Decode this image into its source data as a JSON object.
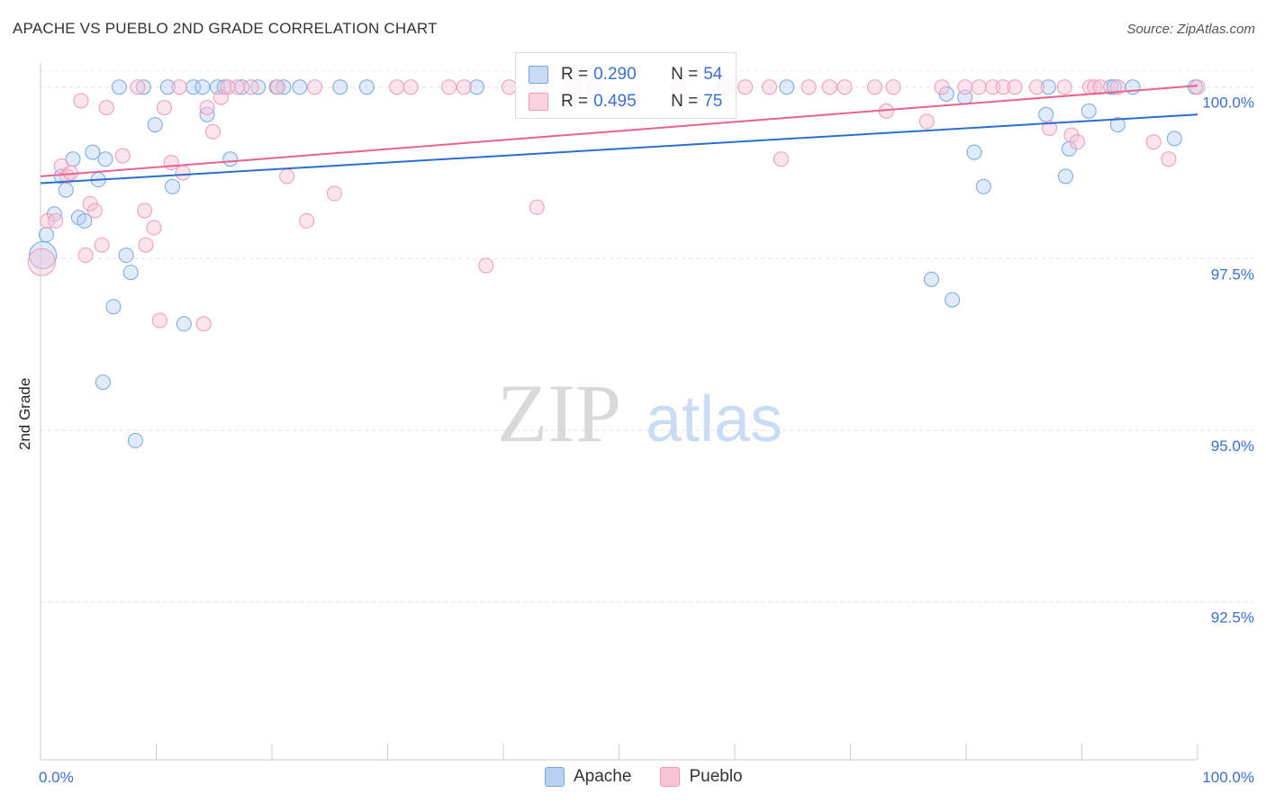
{
  "header": {
    "title": "APACHE VS PUEBLO 2ND GRADE CORRELATION CHART",
    "source": "Source: ZipAtlas.com"
  },
  "watermark": {
    "zip": "ZIP",
    "atlas": "atlas"
  },
  "stats": [
    {
      "r_label": "R = ",
      "r": "0.290",
      "n_label": "N = ",
      "n": "54",
      "color": "#a9c6ef"
    },
    {
      "r_label": "R = ",
      "r": "0.495",
      "n_label": "N = ",
      "n": "75",
      "color": "#f5b4c8"
    }
  ],
  "legend": [
    {
      "label": "Apache",
      "color": "#b8d1f3"
    },
    {
      "label": "Pueblo",
      "color": "#f9c4d4"
    }
  ],
  "chart_data": {
    "type": "scatter",
    "title": "APACHE VS PUEBLO 2ND GRADE CORRELATION CHART",
    "xlabel": "",
    "ylabel": "2nd Grade",
    "xlim": [
      0,
      100
    ],
    "ylim": [
      90.2,
      100.35
    ],
    "x_tick_labels": [
      "0.0%",
      "100.0%"
    ],
    "y_ticks": [
      92.5,
      95.0,
      97.5,
      100.0
    ],
    "y_tick_labels": [
      "92.5%",
      "95.0%",
      "97.5%",
      "100.0%"
    ],
    "grid": true,
    "legend_position": "bottom-center",
    "series": [
      {
        "name": "Apache",
        "color": "#7aa6e3",
        "line_color": "#2a6fcf",
        "trend": {
          "x": [
            0,
            100
          ],
          "y": [
            98.6,
            99.6
          ]
        },
        "points": [
          [
            0.2,
            97.55
          ],
          [
            0.5,
            97.85
          ],
          [
            1.2,
            98.15
          ],
          [
            1.8,
            98.7
          ],
          [
            2.2,
            98.5
          ],
          [
            2.8,
            98.95
          ],
          [
            3.3,
            98.1
          ],
          [
            3.8,
            98.05
          ],
          [
            4.5,
            99.05
          ],
          [
            5.0,
            98.65
          ],
          [
            5.6,
            98.95
          ],
          [
            6.3,
            96.8
          ],
          [
            5.4,
            95.7
          ],
          [
            7.4,
            97.55
          ],
          [
            7.8,
            97.3
          ],
          [
            8.2,
            94.85
          ],
          [
            9.9,
            99.45
          ],
          [
            11.4,
            98.55
          ],
          [
            12.4,
            96.55
          ],
          [
            14.4,
            99.6
          ],
          [
            16.4,
            98.95
          ],
          [
            6.8,
            100.0
          ],
          [
            8.9,
            100.0
          ],
          [
            13.2,
            100.0
          ],
          [
            14.0,
            100.0
          ],
          [
            15.3,
            100.0
          ],
          [
            15.9,
            100.0
          ],
          [
            17.4,
            100.0
          ],
          [
            18.8,
            100.0
          ],
          [
            20.4,
            100.0
          ],
          [
            22.4,
            100.0
          ],
          [
            25.9,
            100.0
          ],
          [
            28.2,
            100.0
          ],
          [
            37.7,
            100.0
          ],
          [
            64.5,
            100.0
          ],
          [
            77.0,
            97.2
          ],
          [
            78.8,
            96.9
          ],
          [
            78.3,
            99.9
          ],
          [
            79.9,
            99.85
          ],
          [
            80.7,
            99.05
          ],
          [
            81.5,
            98.55
          ],
          [
            86.9,
            99.6
          ],
          [
            87.1,
            100.0
          ],
          [
            88.6,
            98.7
          ],
          [
            88.9,
            99.1
          ],
          [
            90.6,
            99.65
          ],
          [
            92.5,
            100.0
          ],
          [
            92.8,
            100.0
          ],
          [
            93.1,
            99.45
          ],
          [
            94.4,
            100.0
          ],
          [
            98.0,
            99.25
          ],
          [
            99.8,
            100.0
          ],
          [
            11.0,
            100.0
          ],
          [
            21.0,
            100.0
          ]
        ]
      },
      {
        "name": "Pueblo",
        "color": "#ef9ab5",
        "line_color": "#e8618f",
        "trend": {
          "x": [
            0,
            100
          ],
          "y": [
            98.7,
            100.02
          ]
        },
        "points": [
          [
            0.1,
            97.45
          ],
          [
            0.6,
            98.05
          ],
          [
            1.3,
            98.05
          ],
          [
            1.8,
            98.85
          ],
          [
            2.3,
            98.7
          ],
          [
            2.6,
            98.75
          ],
          [
            3.5,
            99.8
          ],
          [
            3.9,
            97.55
          ],
          [
            4.3,
            98.3
          ],
          [
            4.7,
            98.2
          ],
          [
            5.3,
            97.7
          ],
          [
            5.7,
            99.7
          ],
          [
            7.1,
            99.0
          ],
          [
            9.0,
            98.2
          ],
          [
            9.8,
            97.95
          ],
          [
            10.3,
            96.6
          ],
          [
            10.7,
            99.7
          ],
          [
            11.3,
            98.9
          ],
          [
            9.1,
            97.7
          ],
          [
            12.3,
            98.75
          ],
          [
            14.1,
            96.55
          ],
          [
            14.4,
            99.7
          ],
          [
            14.9,
            99.35
          ],
          [
            15.6,
            99.85
          ],
          [
            17.0,
            100.0
          ],
          [
            20.5,
            100.0
          ],
          [
            21.3,
            98.7
          ],
          [
            23.0,
            98.05
          ],
          [
            23.7,
            100.0
          ],
          [
            25.4,
            98.45
          ],
          [
            32.0,
            100.0
          ],
          [
            35.3,
            100.0
          ],
          [
            36.6,
            100.0
          ],
          [
            38.5,
            97.4
          ],
          [
            40.5,
            100.0
          ],
          [
            42.9,
            98.25
          ],
          [
            43.2,
            100.0
          ],
          [
            46.1,
            100.0
          ],
          [
            47.9,
            100.0
          ],
          [
            59.1,
            100.0
          ],
          [
            60.9,
            100.0
          ],
          [
            64.0,
            98.95
          ],
          [
            66.4,
            100.0
          ],
          [
            68.2,
            100.0
          ],
          [
            69.5,
            100.0
          ],
          [
            72.1,
            100.0
          ],
          [
            73.1,
            99.65
          ],
          [
            73.7,
            100.0
          ],
          [
            76.6,
            99.5
          ],
          [
            77.9,
            100.0
          ],
          [
            81.1,
            100.0
          ],
          [
            82.3,
            100.0
          ],
          [
            83.2,
            100.0
          ],
          [
            84.2,
            100.0
          ],
          [
            86.1,
            100.0
          ],
          [
            87.2,
            99.4
          ],
          [
            88.5,
            100.0
          ],
          [
            89.1,
            99.3
          ],
          [
            89.6,
            99.2
          ],
          [
            90.7,
            100.0
          ],
          [
            91.1,
            100.0
          ],
          [
            91.6,
            100.0
          ],
          [
            93.1,
            100.0
          ],
          [
            96.2,
            99.2
          ],
          [
            97.5,
            98.95
          ],
          [
            100.0,
            100.0
          ],
          [
            8.4,
            100.0
          ],
          [
            12.0,
            100.0
          ],
          [
            16.2,
            100.0
          ],
          [
            18.2,
            100.0
          ],
          [
            30.8,
            100.0
          ],
          [
            55.1,
            100.0
          ],
          [
            59.5,
            100.0
          ],
          [
            63.0,
            100.0
          ],
          [
            79.9,
            100.0
          ]
        ]
      }
    ]
  }
}
